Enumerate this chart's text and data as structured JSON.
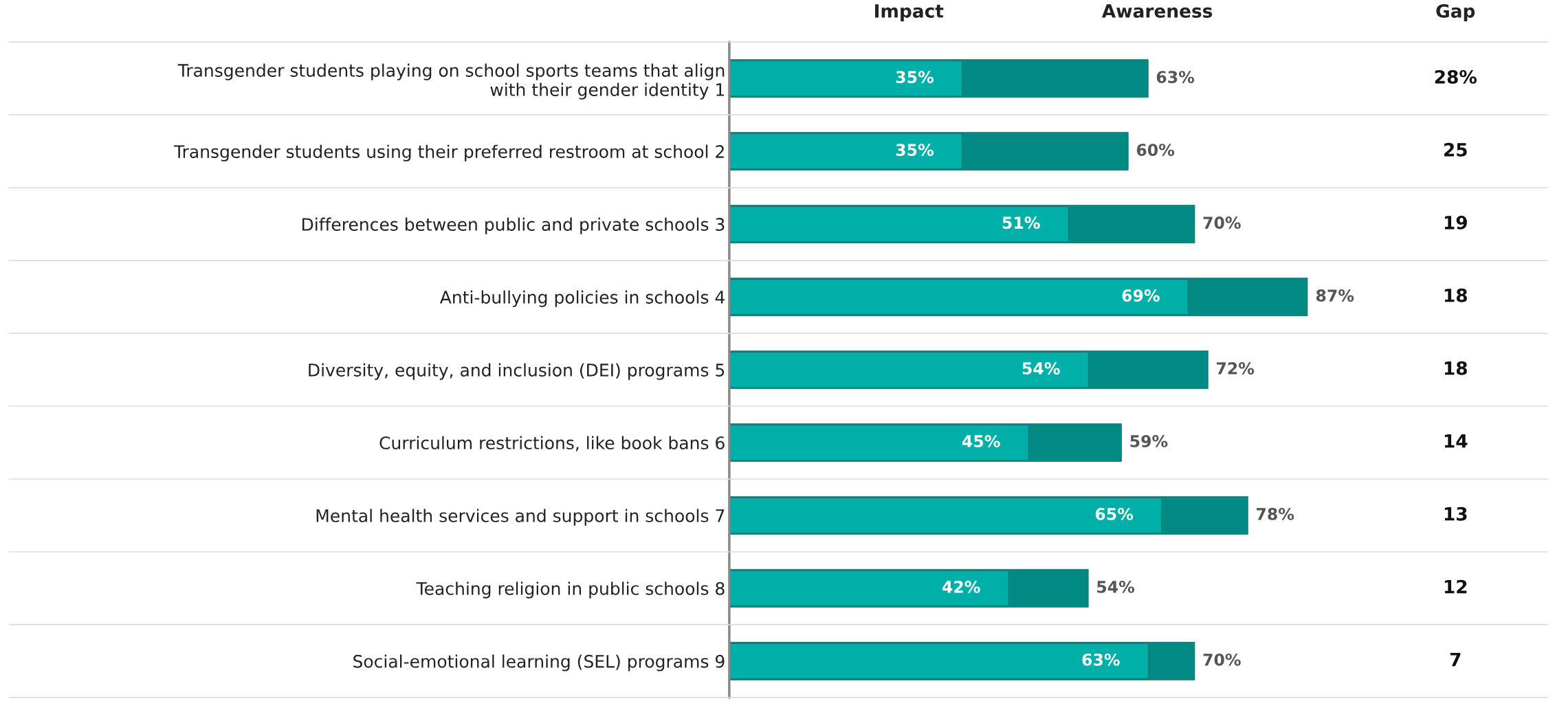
{
  "chart_data": {
    "type": "bar",
    "orientation": "horizontal",
    "tick_labels": "y",
    "legend": "top",
    "categories": [
      "Transgender students playing on school sports teams that align\nwith their gender identity 1",
      "Transgender students using their preferred restroom at school 2",
      "Differences between public and private schools 3",
      "Anti-bullying policies in schools 4",
      "Diversity, equity, and inclusion (DEI) programs 5",
      "Curriculum restrictions, like book bans 6",
      "Mental health services and support in schools 7",
      "Teaching religion in public schools 8",
      "Social-emotional learning (SEL) programs 9"
    ],
    "series": [
      {
        "name": "Awareness",
        "color": "#008a84",
        "values": [
          63,
          60,
          70,
          87,
          72,
          59,
          78,
          54,
          70
        ],
        "value_labels": [
          "63%",
          "60%",
          "70%",
          "87%",
          "72%",
          "59%",
          "78%",
          "54%",
          "70%"
        ]
      },
      {
        "name": "Impact",
        "color": "#00b0a8",
        "values": [
          35,
          35,
          51,
          69,
          54,
          45,
          65,
          42,
          63
        ],
        "value_labels": [
          "35%",
          "35%",
          "51%",
          "69%",
          "54%",
          "45%",
          "65%",
          "42%",
          "63%"
        ]
      }
    ],
    "annotations": [
      "Gap",
      "28%",
      "25",
      "19",
      "18",
      "18",
      "14",
      "13",
      "12",
      "7"
    ]
  }
}
